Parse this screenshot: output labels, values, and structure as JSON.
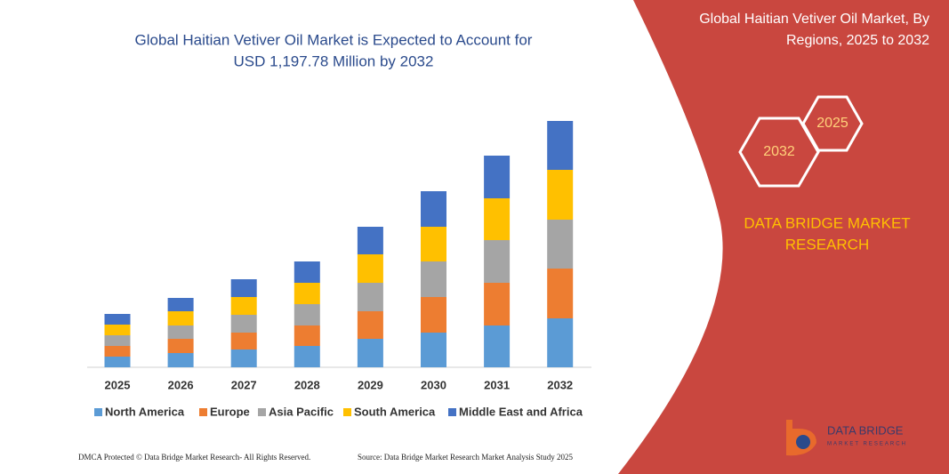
{
  "chart_data": {
    "type": "stacked_bar",
    "title": [
      "Global Haitian Vetiver Oil Market is Expected to Account for",
      "USD 1,197.78 Million by 2032"
    ],
    "categories": [
      "2025",
      "2026",
      "2027",
      "2028",
      "2029",
      "2030",
      "2031",
      "2032"
    ],
    "series": [
      {
        "name": "North America",
        "color": "#5b9bd5",
        "values": [
          12,
          16,
          20,
          24,
          32,
          39,
          47,
          55
        ]
      },
      {
        "name": "Europe",
        "color": "#ed7d31",
        "values": [
          12,
          16,
          19,
          23,
          31,
          40,
          48,
          56
        ]
      },
      {
        "name": "Asia Pacific",
        "color": "#a5a5a5",
        "values": [
          12,
          15,
          20,
          24,
          32,
          40,
          48,
          55
        ]
      },
      {
        "name": "South America",
        "color": "#ffc000",
        "values": [
          12,
          16,
          20,
          24,
          32,
          39,
          47,
          56
        ]
      },
      {
        "name": "Middle East and Africa",
        "color": "#4472c4",
        "values": [
          12,
          15,
          20,
          24,
          31,
          40,
          48,
          55
        ]
      }
    ],
    "ylim": [
      0,
      280
    ]
  },
  "side_panel": {
    "title": [
      "Global Haitian Vetiver Oil Market, By",
      "Regions, 2025 to 2032"
    ],
    "hexagons": [
      "2032",
      "2025"
    ],
    "brand": [
      "DATA BRIDGE MARKET",
      "RESEARCH"
    ]
  },
  "footer": {
    "left": "DMCA Protected © Data Bridge Market Research- All Rights Reserved.",
    "right": "Source: Data Bridge Market Research Market Analysis Study 2025"
  },
  "logo": {
    "name": "DATA BRIDGE",
    "tagline": "MARKET RESEARCH"
  }
}
